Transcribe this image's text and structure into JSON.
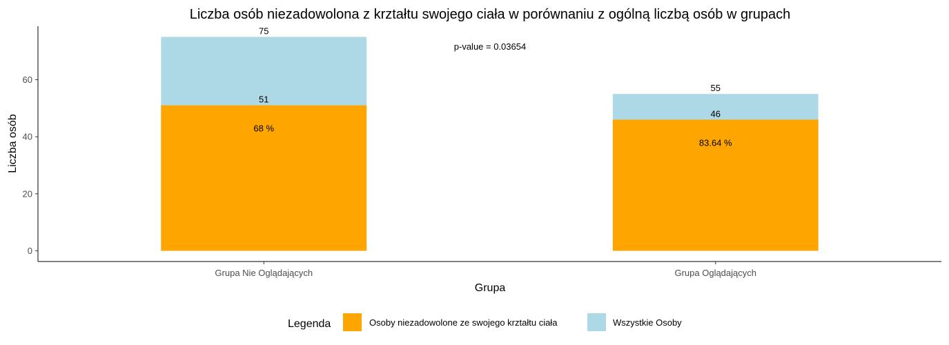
{
  "chart_data": {
    "type": "bar",
    "stacked": "overlay",
    "title": "Liczba osób niezadowolona z krztałtu swojego ciała w porównaniu z ogólną liczbą osób w grupach",
    "xlabel": "Grupa",
    "ylabel": "Liczba osób",
    "categories": [
      "Grupa Nie Oglądających",
      "Grupa Oglądających"
    ],
    "series": [
      {
        "name": "Wszystkie Osoby",
        "values": [
          75,
          55
        ],
        "labels": [
          "75",
          "55"
        ],
        "color": "#ADD8E6"
      },
      {
        "name": "Osoby niezadowolone ze swojego krztałtu ciała",
        "values": [
          51,
          46
        ],
        "labels": [
          "51",
          "46"
        ],
        "color": "#FFA500"
      }
    ],
    "percent_labels": [
      "68 %",
      "83.64 %"
    ],
    "annotation": "p-value = 0.03654",
    "yticks": [
      0,
      20,
      40,
      60
    ],
    "ytick_labels": [
      "0",
      "20",
      "40",
      "60"
    ],
    "ylim": [
      -3.75,
      78.75
    ],
    "grid": false,
    "legend": {
      "title": "Legenda",
      "position": "bottom",
      "items": [
        {
          "label": "Osoby niezadowolone ze swojego krztałtu ciała",
          "color": "#FFA500"
        },
        {
          "label": "Wszystkie Osoby",
          "color": "#ADD8E6"
        }
      ]
    }
  }
}
